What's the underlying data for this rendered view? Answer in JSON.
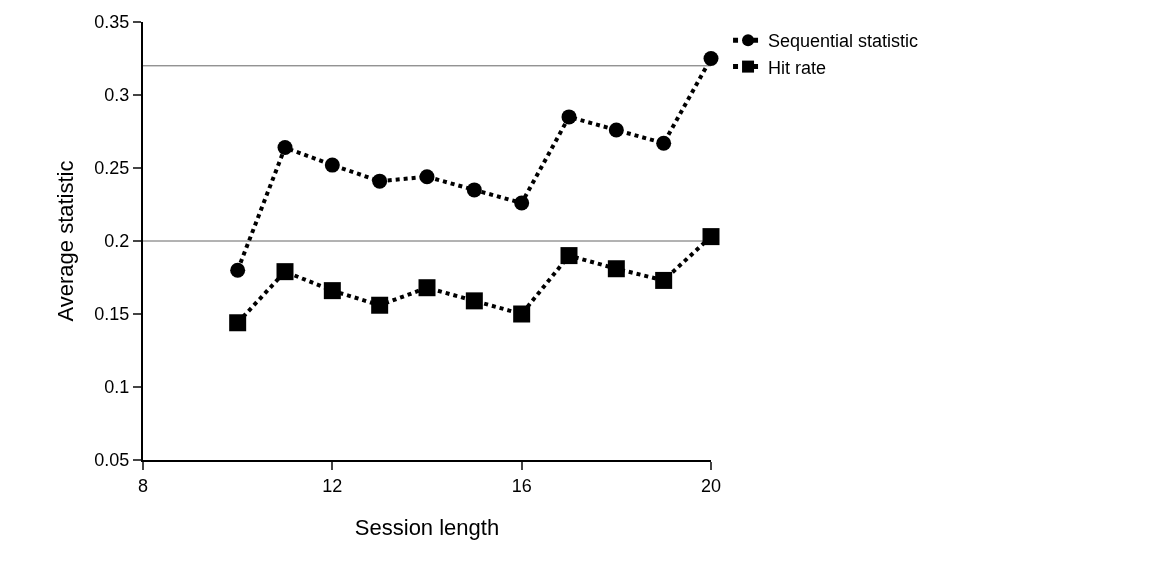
{
  "chart_data": {
    "type": "line",
    "xlabel": "Session length",
    "ylabel": "Average statistic",
    "x": [
      10,
      11,
      12,
      13,
      14,
      15,
      16,
      17,
      18,
      19,
      20
    ],
    "series": [
      {
        "name": "Sequential statistic",
        "color": "#000000",
        "marker": "circle",
        "values": [
          0.18,
          0.264,
          0.252,
          0.241,
          0.244,
          0.235,
          0.226,
          0.285,
          0.276,
          0.267,
          0.325
        ]
      },
      {
        "name": "Hit rate",
        "color": "#000000",
        "marker": "square",
        "values": [
          0.144,
          0.179,
          0.166,
          0.156,
          0.168,
          0.159,
          0.15,
          0.19,
          0.181,
          0.173,
          0.203
        ]
      }
    ],
    "xlim": [
      8,
      20
    ],
    "xticks": [
      8,
      12,
      16,
      20
    ],
    "ylim": [
      0.05,
      0.35
    ],
    "yticks": [
      0.05,
      0.1,
      0.15,
      0.2,
      0.25,
      0.3,
      0.35
    ],
    "ref_lines": [
      {
        "axis": "y",
        "value": 0.32,
        "color": "#666666"
      },
      {
        "axis": "y",
        "value": 0.2,
        "color": "#666666"
      }
    ],
    "grid": false,
    "legend": "top right",
    "line_style": "dotted"
  }
}
